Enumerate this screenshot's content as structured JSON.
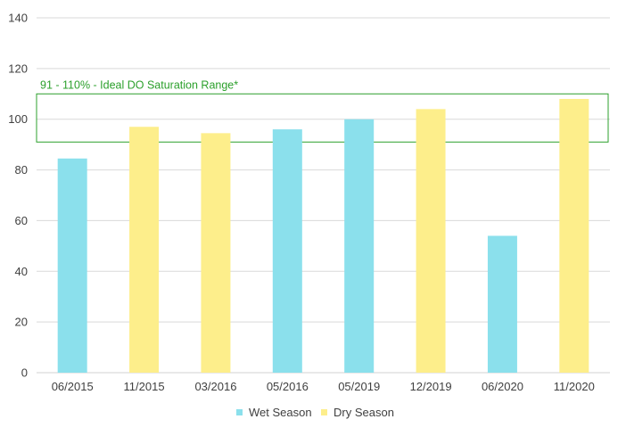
{
  "chart_data": {
    "type": "bar",
    "title": "",
    "xlabel": "",
    "ylabel": "",
    "ylim": [
      0,
      140
    ],
    "yticks": [
      0,
      20,
      40,
      60,
      80,
      100,
      120,
      140
    ],
    "grid": true,
    "legend_position": "bottom",
    "categories": [
      "06/2015",
      "11/2015",
      "03/2016",
      "05/2016",
      "05/2019",
      "12/2019",
      "06/2020",
      "11/2020"
    ],
    "values": [
      84.5,
      97,
      94.5,
      96,
      100,
      104,
      54,
      108
    ],
    "season": [
      "Wet Season",
      "Dry Season",
      "Dry Season",
      "Wet Season",
      "Wet Season",
      "Dry Season",
      "Wet Season",
      "Dry Season"
    ],
    "series": [
      {
        "name": "Wet Season",
        "color": "#8be0ec"
      },
      {
        "name": "Dry Season",
        "color": "#fdee8b"
      }
    ],
    "annotation": {
      "text": "91 - 110% - Ideal DO Saturation Range*",
      "y_from": 91,
      "y_to": 110,
      "color": "#2ca02c"
    }
  }
}
